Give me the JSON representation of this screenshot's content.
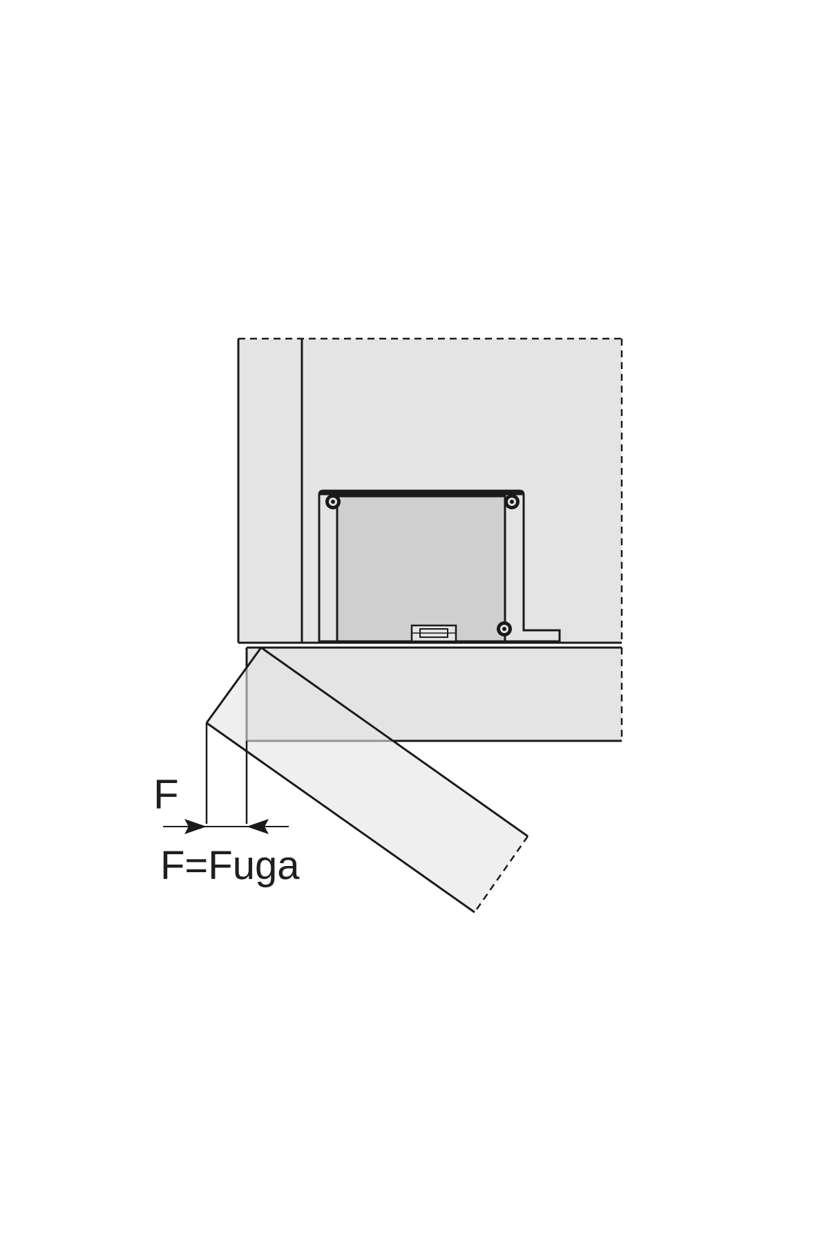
{
  "labels": {
    "gap_symbol": "F",
    "gap_legend": "F=Fuga"
  },
  "colors": {
    "background": "#ffffff",
    "panel_fill": "#e4e4e4",
    "hinge_fill": "#cfcfcf",
    "line": "#1a1a1a"
  }
}
